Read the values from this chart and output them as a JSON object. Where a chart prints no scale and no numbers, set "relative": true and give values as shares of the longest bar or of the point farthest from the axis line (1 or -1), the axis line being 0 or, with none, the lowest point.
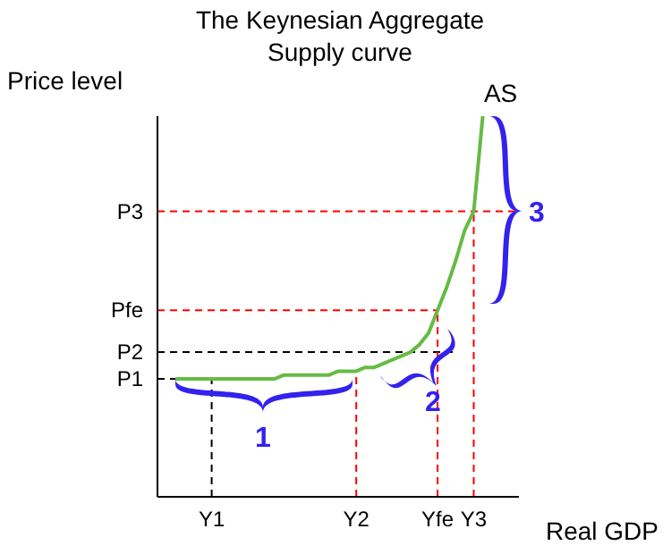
{
  "chart_data": {
    "type": "line",
    "title": "The Keynesian Aggregate\nSupply curve",
    "xlabel": "Real GDP",
    "ylabel": "Price level",
    "relative": true,
    "marker": "none",
    "grid": false,
    "categories": [
      null,
      null,
      null,
      null,
      null,
      null,
      "Y1",
      null,
      null,
      null,
      null,
      null,
      null,
      null,
      null,
      null,
      null,
      null,
      null,
      null,
      null,
      null,
      "Y2",
      null,
      null,
      null,
      null,
      null,
      null,
      null,
      null,
      "Yfe",
      null,
      null,
      null,
      "Y3",
      null,
      null,
      null,
      null,
      null
    ],
    "series": [
      {
        "color": "#66bb44",
        "line_style": "solid",
        "values": [
          null,
          null,
          0.31,
          0.31,
          0.31,
          0.31,
          0.31,
          0.31,
          0.31,
          0.31,
          0.31,
          0.31,
          0.31,
          0.31,
          0.32,
          0.32,
          0.32,
          0.32,
          0.32,
          0.32,
          0.33,
          0.33,
          0.33,
          0.34,
          0.34,
          0.35,
          0.36,
          0.37,
          0.38,
          0.4,
          0.43,
          0.49,
          0.55,
          0.62,
          0.7,
          0.75,
          1,
          null,
          null,
          null,
          null
        ]
      }
    ],
    "ref_lines": [
      {
        "axis": "y",
        "value": 0.31,
        "label": "P1",
        "color": "#000000",
        "line_style": "dashed"
      },
      {
        "axis": "y",
        "value": 0.38,
        "label": "P2",
        "color": "#000000",
        "line_style": "dashed"
      },
      {
        "axis": "y",
        "value": 0.49,
        "label": "Pfe",
        "color": "#ff0000",
        "line_style": "dashed"
      },
      {
        "axis": "y",
        "value": 0.75,
        "label": "P3",
        "color": "#ff0000",
        "line_style": "dashed"
      },
      {
        "axis": "x",
        "value": "Y1",
        "color": "#000000",
        "line_style": "dashed"
      },
      {
        "axis": "x",
        "value": "Y2",
        "color": "#ff0000",
        "line_style": "dashed"
      },
      {
        "axis": "x",
        "value": "Yfe",
        "color": "#ff0000",
        "line_style": "dashed"
      },
      {
        "axis": "x",
        "value": "Y3",
        "color": "#ff0000",
        "line_style": "dashed"
      }
    ],
    "annotations": [
      "AS",
      "1",
      "2",
      "3"
    ]
  }
}
